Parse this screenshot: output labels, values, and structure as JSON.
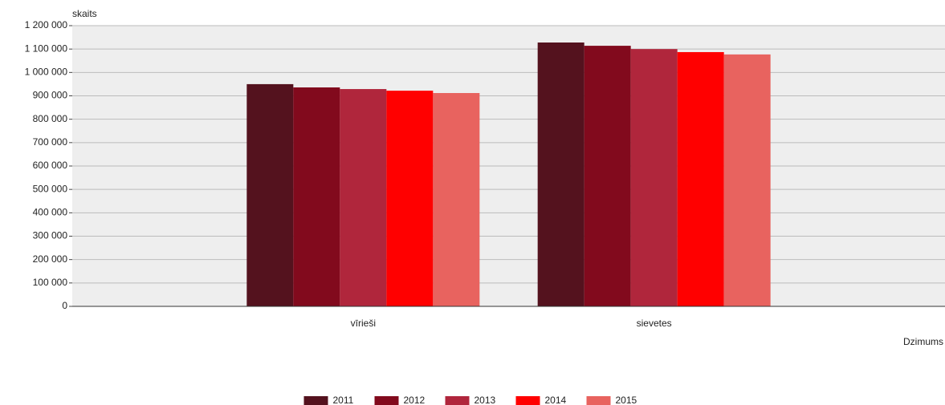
{
  "chart_data": {
    "type": "bar",
    "y_label": "skaits",
    "x_label": "Dzimums",
    "categories": [
      "vīrieši",
      "sievetes"
    ],
    "series": [
      {
        "name": "2011",
        "color": "#54121e",
        "values": [
          950000,
          1128000
        ]
      },
      {
        "name": "2012",
        "color": "#820a1d",
        "values": [
          936000,
          1114000
        ]
      },
      {
        "name": "2013",
        "color": "#b0263c",
        "values": [
          929000,
          1100000
        ]
      },
      {
        "name": "2014",
        "color": "#ff0000",
        "values": [
          922000,
          1087000
        ]
      },
      {
        "name": "2015",
        "color": "#e8635f",
        "values": [
          912000,
          1077000
        ]
      }
    ],
    "ylim": [
      0,
      1200000
    ],
    "yticks": [
      0,
      {
        "value": 100000,
        "label": "100 000"
      },
      {
        "value": 200000,
        "label": "200 000"
      },
      {
        "value": 300000,
        "label": "300 000"
      },
      {
        "value": 400000,
        "label": "400 000"
      },
      {
        "value": 500000,
        "label": "500 000"
      },
      {
        "value": 600000,
        "label": "600 000"
      },
      {
        "value": 700000,
        "label": "700 000"
      },
      {
        "value": 800000,
        "label": "800 000"
      },
      {
        "value": 900000,
        "label": "900 000"
      },
      {
        "value": 1000000,
        "label": "1 000 000"
      },
      {
        "value": 1100000,
        "label": "1 100 000"
      },
      {
        "value": 1200000,
        "label": "1 200 000"
      }
    ],
    "grid": true,
    "legend": "bottom"
  }
}
